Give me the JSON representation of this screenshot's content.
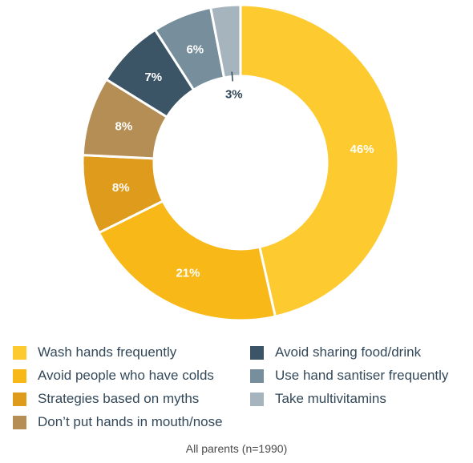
{
  "chart_data": {
    "type": "pie",
    "title": "",
    "categories": [
      "Wash hands frequently",
      "Avoid people who have colds",
      "Strategies based on myths",
      "Don’t put hands in mouth/nose",
      "Avoid sharing food/drink",
      "Use hand santiser frequently",
      "Take multivitamins"
    ],
    "values": [
      46,
      21,
      8,
      8,
      7,
      6,
      3
    ],
    "value_labels": [
      "46%",
      "21%",
      "8%",
      "8%",
      "7%",
      "6%",
      "3%"
    ],
    "colors": [
      "#fdcb30",
      "#f8b918",
      "#df9b1c",
      "#b58e55",
      "#3c5566",
      "#778f9c",
      "#a6b4be"
    ],
    "label_colors": [
      "#ffffff",
      "#ffffff",
      "#ffffff",
      "#ffffff",
      "#ffffff",
      "#ffffff",
      "#2f4658"
    ],
    "donut": true,
    "legend_placement": "bottom"
  },
  "caption": "All parents (n=1990)"
}
